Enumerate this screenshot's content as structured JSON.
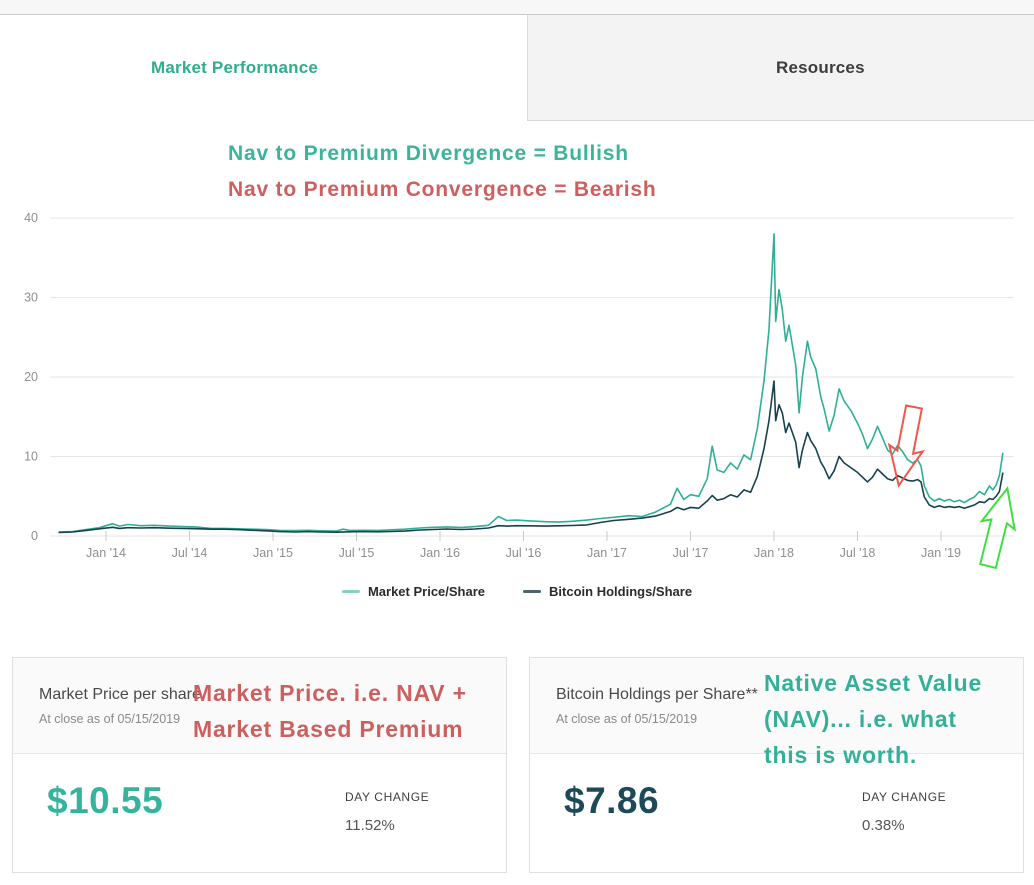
{
  "header": {
    "tabs": [
      {
        "label": "Market Performance",
        "active": true
      },
      {
        "label": "Resources",
        "active": false
      }
    ]
  },
  "annotations": {
    "title_line1": "Nav to Premium Divergence = Bullish",
    "title_line2": "Nav to Premium Convergence = Bearish",
    "title_line1_color": "#3cb49b",
    "title_line2_color": "#cf5f5f",
    "red_arrow_color": "#f2564d",
    "green_arrow_color": "#3fdf3f",
    "left_card_note_line1": "Market Price. i.e. NAV +",
    "left_card_note_line2": "Market Based Premium",
    "right_card_note_line1": "Native Asset Value",
    "right_card_note_line2": "(NAV)... i.e. what",
    "right_card_note_line3": "this is worth."
  },
  "chart_data": {
    "type": "line",
    "title": "",
    "xlabel": "",
    "ylabel": "",
    "ylim": [
      0,
      40
    ],
    "grid": true,
    "legend_position": "bottom",
    "y_ticks": [
      0,
      10,
      20,
      30,
      40
    ],
    "x_ticks": [
      {
        "label": "Jan '14",
        "year": 2014.0
      },
      {
        "label": "Jul '14",
        "year": 2014.5
      },
      {
        "label": "Jan '15",
        "year": 2015.0
      },
      {
        "label": "Jul '15",
        "year": 2015.5
      },
      {
        "label": "Jan '16",
        "year": 2016.0
      },
      {
        "label": "Jul '16",
        "year": 2016.5
      },
      {
        "label": "Jan '17",
        "year": 2017.0
      },
      {
        "label": "Jul '17",
        "year": 2017.5
      },
      {
        "label": "Jan '18",
        "year": 2018.0
      },
      {
        "label": "Jul '18",
        "year": 2018.5
      },
      {
        "label": "Jan '19",
        "year": 2019.0
      }
    ],
    "series": [
      {
        "name": "Market Price/Share",
        "color": "#2fb096",
        "swatch_color": "#86d2c2",
        "points": [
          [
            2013.72,
            0.5
          ],
          [
            2013.8,
            0.55
          ],
          [
            2013.88,
            0.8
          ],
          [
            2013.96,
            1.05
          ],
          [
            2014.04,
            1.55
          ],
          [
            2014.08,
            1.25
          ],
          [
            2014.13,
            1.45
          ],
          [
            2014.21,
            1.3
          ],
          [
            2014.29,
            1.35
          ],
          [
            2014.38,
            1.25
          ],
          [
            2014.46,
            1.2
          ],
          [
            2014.54,
            1.15
          ],
          [
            2014.63,
            0.95
          ],
          [
            2014.71,
            0.95
          ],
          [
            2014.79,
            0.9
          ],
          [
            2014.88,
            0.85
          ],
          [
            2014.96,
            0.8
          ],
          [
            2015.04,
            0.7
          ],
          [
            2015.13,
            0.68
          ],
          [
            2015.21,
            0.72
          ],
          [
            2015.29,
            0.65
          ],
          [
            2015.38,
            0.62
          ],
          [
            2015.42,
            0.85
          ],
          [
            2015.46,
            0.7
          ],
          [
            2015.54,
            0.72
          ],
          [
            2015.63,
            0.7
          ],
          [
            2015.71,
            0.78
          ],
          [
            2015.79,
            0.85
          ],
          [
            2015.88,
            1.0
          ],
          [
            2015.96,
            1.1
          ],
          [
            2016.04,
            1.15
          ],
          [
            2016.13,
            1.08
          ],
          [
            2016.21,
            1.18
          ],
          [
            2016.29,
            1.35
          ],
          [
            2016.35,
            2.45
          ],
          [
            2016.4,
            1.95
          ],
          [
            2016.46,
            2.0
          ],
          [
            2016.54,
            1.9
          ],
          [
            2016.63,
            1.8
          ],
          [
            2016.71,
            1.75
          ],
          [
            2016.79,
            1.85
          ],
          [
            2016.88,
            2.0
          ],
          [
            2016.96,
            2.2
          ],
          [
            2017.04,
            2.35
          ],
          [
            2017.13,
            2.55
          ],
          [
            2017.21,
            2.45
          ],
          [
            2017.29,
            3.0
          ],
          [
            2017.38,
            4.0
          ],
          [
            2017.42,
            6.0
          ],
          [
            2017.46,
            4.6
          ],
          [
            2017.5,
            5.2
          ],
          [
            2017.55,
            5.0
          ],
          [
            2017.6,
            7.2
          ],
          [
            2017.63,
            11.3
          ],
          [
            2017.66,
            8.3
          ],
          [
            2017.7,
            8.0
          ],
          [
            2017.74,
            9.2
          ],
          [
            2017.78,
            8.4
          ],
          [
            2017.82,
            10.2
          ],
          [
            2017.86,
            9.6
          ],
          [
            2017.9,
            13.5
          ],
          [
            2017.94,
            19.5
          ],
          [
            2017.97,
            26
          ],
          [
            2018.0,
            38
          ],
          [
            2018.01,
            27
          ],
          [
            2018.03,
            31
          ],
          [
            2018.05,
            28.5
          ],
          [
            2018.07,
            24.5
          ],
          [
            2018.09,
            26.5
          ],
          [
            2018.11,
            24
          ],
          [
            2018.13,
            21.5
          ],
          [
            2018.15,
            15.5
          ],
          [
            2018.17,
            20
          ],
          [
            2018.2,
            24.5
          ],
          [
            2018.22,
            22.5
          ],
          [
            2018.25,
            21
          ],
          [
            2018.28,
            17.5
          ],
          [
            2018.3,
            16
          ],
          [
            2018.33,
            13.2
          ],
          [
            2018.36,
            15.2
          ],
          [
            2018.39,
            18.5
          ],
          [
            2018.42,
            17
          ],
          [
            2018.46,
            15.8
          ],
          [
            2018.5,
            14.2
          ],
          [
            2018.53,
            12.8
          ],
          [
            2018.56,
            11
          ],
          [
            2018.59,
            12.2
          ],
          [
            2018.62,
            13.8
          ],
          [
            2018.65,
            12.3
          ],
          [
            2018.68,
            10.8
          ],
          [
            2018.71,
            10.3
          ],
          [
            2018.74,
            11.4
          ],
          [
            2018.77,
            10.6
          ],
          [
            2018.8,
            9.6
          ],
          [
            2018.83,
            9.2
          ],
          [
            2018.86,
            9.6
          ],
          [
            2018.88,
            8.8
          ],
          [
            2018.9,
            6.3
          ],
          [
            2018.93,
            4.9
          ],
          [
            2018.96,
            4.4
          ],
          [
            2018.99,
            4.7
          ],
          [
            2019.02,
            4.4
          ],
          [
            2019.05,
            4.6
          ],
          [
            2019.08,
            4.3
          ],
          [
            2019.11,
            4.5
          ],
          [
            2019.14,
            4.2
          ],
          [
            2019.17,
            4.6
          ],
          [
            2019.2,
            4.9
          ],
          [
            2019.23,
            5.6
          ],
          [
            2019.26,
            5.2
          ],
          [
            2019.29,
            6.3
          ],
          [
            2019.31,
            5.8
          ],
          [
            2019.33,
            6.4
          ],
          [
            2019.35,
            7.6
          ],
          [
            2019.37,
            10.4
          ]
        ]
      },
      {
        "name": "Bitcoin Holdings/Share",
        "color": "#17414f",
        "swatch_color": "#4a6470",
        "points": [
          [
            2013.72,
            0.45
          ],
          [
            2013.8,
            0.5
          ],
          [
            2013.88,
            0.7
          ],
          [
            2013.96,
            0.9
          ],
          [
            2014.04,
            1.1
          ],
          [
            2014.08,
            0.95
          ],
          [
            2014.13,
            1.05
          ],
          [
            2014.21,
            1.0
          ],
          [
            2014.29,
            1.05
          ],
          [
            2014.38,
            0.98
          ],
          [
            2014.46,
            0.95
          ],
          [
            2014.54,
            0.92
          ],
          [
            2014.63,
            0.85
          ],
          [
            2014.71,
            0.85
          ],
          [
            2014.79,
            0.8
          ],
          [
            2014.88,
            0.72
          ],
          [
            2014.96,
            0.65
          ],
          [
            2015.04,
            0.55
          ],
          [
            2015.13,
            0.5
          ],
          [
            2015.21,
            0.55
          ],
          [
            2015.29,
            0.5
          ],
          [
            2015.38,
            0.48
          ],
          [
            2015.46,
            0.53
          ],
          [
            2015.54,
            0.55
          ],
          [
            2015.63,
            0.53
          ],
          [
            2015.71,
            0.57
          ],
          [
            2015.79,
            0.62
          ],
          [
            2015.88,
            0.75
          ],
          [
            2015.96,
            0.82
          ],
          [
            2016.04,
            0.88
          ],
          [
            2016.13,
            0.82
          ],
          [
            2016.21,
            0.88
          ],
          [
            2016.29,
            1.0
          ],
          [
            2016.35,
            1.3
          ],
          [
            2016.4,
            1.25
          ],
          [
            2016.46,
            1.3
          ],
          [
            2016.54,
            1.28
          ],
          [
            2016.63,
            1.25
          ],
          [
            2016.71,
            1.28
          ],
          [
            2016.79,
            1.32
          ],
          [
            2016.88,
            1.4
          ],
          [
            2016.96,
            1.7
          ],
          [
            2017.04,
            1.95
          ],
          [
            2017.13,
            2.1
          ],
          [
            2017.21,
            2.25
          ],
          [
            2017.29,
            2.5
          ],
          [
            2017.38,
            3.1
          ],
          [
            2017.42,
            3.6
          ],
          [
            2017.46,
            3.3
          ],
          [
            2017.5,
            3.6
          ],
          [
            2017.55,
            3.5
          ],
          [
            2017.6,
            4.4
          ],
          [
            2017.63,
            5.1
          ],
          [
            2017.66,
            4.5
          ],
          [
            2017.7,
            4.7
          ],
          [
            2017.74,
            5.2
          ],
          [
            2017.78,
            4.9
          ],
          [
            2017.82,
            5.8
          ],
          [
            2017.86,
            5.5
          ],
          [
            2017.9,
            7.5
          ],
          [
            2017.94,
            11
          ],
          [
            2017.97,
            14.5
          ],
          [
            2018.0,
            19.5
          ],
          [
            2018.01,
            14.5
          ],
          [
            2018.03,
            16.5
          ],
          [
            2018.05,
            15.5
          ],
          [
            2018.07,
            13
          ],
          [
            2018.09,
            14.2
          ],
          [
            2018.11,
            13
          ],
          [
            2018.13,
            11.8
          ],
          [
            2018.15,
            8.6
          ],
          [
            2018.17,
            10.8
          ],
          [
            2018.2,
            13
          ],
          [
            2018.22,
            12
          ],
          [
            2018.25,
            11
          ],
          [
            2018.28,
            9.3
          ],
          [
            2018.3,
            8.6
          ],
          [
            2018.33,
            7.2
          ],
          [
            2018.36,
            8.2
          ],
          [
            2018.39,
            10
          ],
          [
            2018.42,
            9.2
          ],
          [
            2018.46,
            8.6
          ],
          [
            2018.5,
            8.0
          ],
          [
            2018.53,
            7.4
          ],
          [
            2018.56,
            6.8
          ],
          [
            2018.59,
            7.4
          ],
          [
            2018.62,
            8.4
          ],
          [
            2018.65,
            7.8
          ],
          [
            2018.68,
            7.2
          ],
          [
            2018.71,
            7.0
          ],
          [
            2018.74,
            7.6
          ],
          [
            2018.77,
            7.3
          ],
          [
            2018.8,
            7.0
          ],
          [
            2018.83,
            6.9
          ],
          [
            2018.86,
            7.1
          ],
          [
            2018.88,
            6.8
          ],
          [
            2018.9,
            4.9
          ],
          [
            2018.93,
            3.9
          ],
          [
            2018.96,
            3.6
          ],
          [
            2018.99,
            3.8
          ],
          [
            2019.02,
            3.6
          ],
          [
            2019.05,
            3.7
          ],
          [
            2019.08,
            3.6
          ],
          [
            2019.11,
            3.7
          ],
          [
            2019.14,
            3.5
          ],
          [
            2019.17,
            3.7
          ],
          [
            2019.2,
            3.9
          ],
          [
            2019.23,
            4.3
          ],
          [
            2019.26,
            4.2
          ],
          [
            2019.29,
            4.7
          ],
          [
            2019.31,
            4.6
          ],
          [
            2019.33,
            5.0
          ],
          [
            2019.35,
            5.6
          ],
          [
            2019.37,
            7.9
          ]
        ]
      }
    ]
  },
  "cards": [
    {
      "title": "Market Price per share",
      "as_of": "At close as of 05/15/2019",
      "price": "$10.55",
      "day_change_label": "DAY CHANGE",
      "day_change": "11.52%"
    },
    {
      "title": "Bitcoin Holdings per Share**",
      "as_of": "At close as of 05/15/2019",
      "price": "$7.86",
      "day_change_label": "DAY CHANGE",
      "day_change": "0.38%"
    }
  ]
}
